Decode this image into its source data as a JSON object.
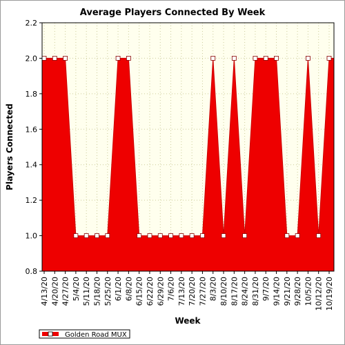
{
  "chart_data": {
    "type": "area",
    "title": "Average Players Connected By Week",
    "xlabel": "Week",
    "ylabel": "Players Connected",
    "ylim": [
      0.8,
      2.2
    ],
    "yticks": [
      "0.8",
      "1.0",
      "1.2",
      "1.4",
      "1.6",
      "1.8",
      "2.0",
      "2.2"
    ],
    "grid": true,
    "legend_placement": "bottom-left",
    "categories": [
      "4/13/20",
      "4/20/20",
      "4/27/20",
      "5/4/20",
      "5/11/20",
      "5/18/20",
      "5/25/20",
      "6/1/20",
      "6/8/20",
      "6/15/20",
      "6/22/20",
      "6/29/20",
      "7/6/20",
      "7/13/20",
      "7/20/20",
      "7/27/20",
      "8/3/20",
      "8/10/20",
      "8/17/20",
      "8/24/20",
      "8/31/20",
      "9/7/20",
      "9/14/20",
      "9/21/20",
      "9/28/20",
      "10/5/20",
      "10/12/20",
      "10/19/20"
    ],
    "series": [
      {
        "name": "Golden Road MUX",
        "color": "#ee0000",
        "values": [
          2,
          2,
          2,
          1,
          1,
          1,
          1,
          2,
          2,
          1,
          1,
          1,
          1,
          1,
          1,
          1,
          2,
          1,
          2,
          1,
          2,
          2,
          2,
          1,
          1,
          2,
          1,
          2
        ]
      }
    ]
  },
  "colors": {
    "plot_background": "#ffffee",
    "area_fill": "#ee0000",
    "grid": "#cccc99"
  }
}
